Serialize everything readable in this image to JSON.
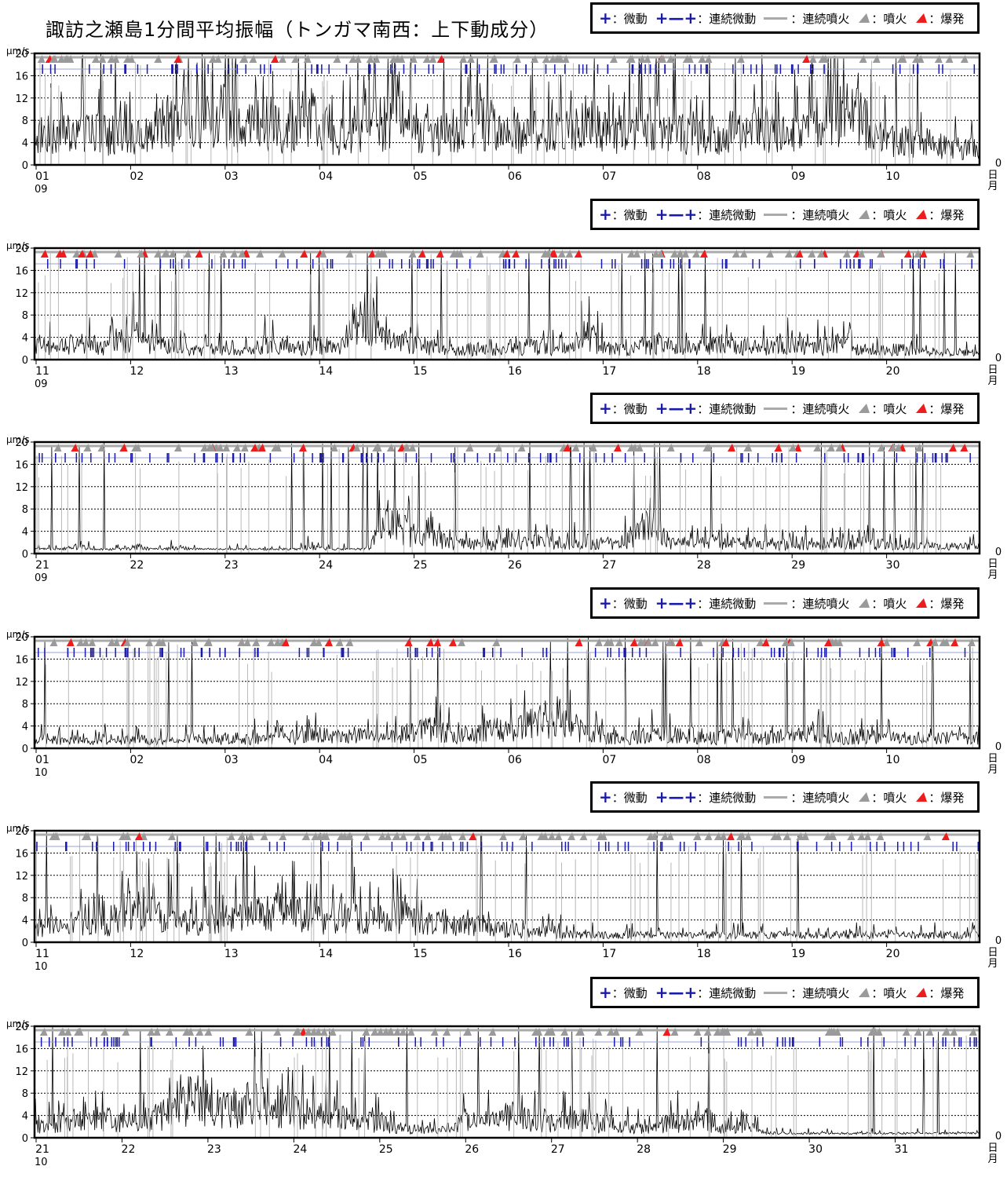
{
  "title": "諏訪之瀬島1分間平均振幅（トンガマ南西：上下動成分）",
  "legend": {
    "tremor": "：微動",
    "continuous_tremor": "：連続微動",
    "continuous_eruption": "：連続噴火",
    "eruption": "：噴火",
    "explosion": "：爆発"
  },
  "colors": {
    "tremor": "#1a1aa8",
    "eruption": "#9a9a9a",
    "explosion": "#ee1c1c",
    "continuous": "#aaaaaa",
    "trace": "#000000"
  },
  "chart_data": [
    {
      "type": "line",
      "unit": "μm/s",
      "ylim": [
        0,
        20
      ],
      "yticks": [
        0,
        4,
        8,
        12,
        16,
        20
      ],
      "x_ticks": [
        "01",
        "02",
        "03",
        "04",
        "05",
        "06",
        "07",
        "08",
        "09",
        "10"
      ],
      "month": "09",
      "axis_end_label": "0",
      "axis_end_unit": [
        "日",
        "月"
      ],
      "grid": true,
      "envelope": [
        9,
        10,
        9,
        10,
        11,
        9,
        9,
        8,
        10,
        13,
        12,
        14,
        13,
        15,
        12,
        13,
        13,
        11,
        12,
        14,
        11,
        9,
        10,
        12,
        13,
        14,
        12,
        9,
        9,
        10,
        12,
        13,
        10,
        10,
        9,
        11,
        10,
        10,
        14,
        12,
        9,
        11,
        13,
        11,
        10,
        10,
        9,
        9,
        11,
        10,
        12,
        9,
        9,
        11,
        13,
        16,
        17,
        13,
        8,
        7,
        7,
        7,
        6,
        5,
        5,
        5
      ]
    },
    {
      "type": "line",
      "unit": "μm/s",
      "ylim": [
        0,
        20
      ],
      "yticks": [
        0,
        4,
        8,
        12,
        16,
        20
      ],
      "x_ticks": [
        "11",
        "12",
        "13",
        "14",
        "15",
        "16",
        "17",
        "18",
        "19",
        "20"
      ],
      "month": "09",
      "axis_end_label": "0",
      "axis_end_unit": [
        "日",
        "月"
      ],
      "grid": true,
      "envelope": [
        5,
        4,
        4,
        5,
        4,
        4,
        6,
        7,
        5,
        4,
        3,
        3,
        3,
        3,
        2,
        3,
        5,
        4,
        3,
        4,
        4,
        3,
        10,
        14,
        6,
        5,
        5,
        4,
        3,
        3,
        3,
        3,
        3,
        3,
        4,
        4,
        3,
        3,
        8,
        4,
        3,
        3,
        4,
        5,
        3,
        3,
        4,
        4,
        5,
        4,
        4,
        4,
        5,
        4,
        4,
        4,
        4,
        3,
        3,
        3,
        3,
        3,
        2,
        2,
        2,
        2
      ]
    },
    {
      "type": "line",
      "unit": "μm/s",
      "ylim": [
        0,
        20
      ],
      "yticks": [
        0,
        4,
        8,
        12,
        16,
        20
      ],
      "x_ticks": [
        "21",
        "22",
        "23",
        "24",
        "25",
        "26",
        "27",
        "28",
        "29",
        "30"
      ],
      "month": "09",
      "axis_end_label": "0",
      "axis_end_unit": [
        "日",
        "月"
      ],
      "grid": true,
      "envelope": [
        1,
        1,
        1,
        2,
        1,
        1,
        1,
        2,
        1,
        1,
        2,
        1,
        1,
        1,
        1,
        1,
        1,
        1,
        1,
        2,
        1,
        1,
        1,
        1,
        9,
        8,
        6,
        5,
        4,
        3,
        3,
        3,
        3,
        3,
        3,
        4,
        3,
        3,
        4,
        3,
        3,
        5,
        8,
        6,
        3,
        3,
        3,
        3,
        3,
        3,
        3,
        3,
        3,
        3,
        2,
        3,
        3,
        3,
        3,
        2,
        2,
        2,
        2,
        2,
        2,
        2
      ]
    },
    {
      "type": "line",
      "unit": "μm/s",
      "ylim": [
        0,
        20
      ],
      "yticks": [
        0,
        4,
        8,
        12,
        16,
        20
      ],
      "x_ticks": [
        "01",
        "02",
        "03",
        "04",
        "05",
        "06",
        "07",
        "08",
        "09",
        "10"
      ],
      "month": "10",
      "axis_end_label": "0",
      "axis_end_unit": [
        "日",
        "月"
      ],
      "grid": true,
      "envelope": [
        2,
        3,
        2,
        2,
        2,
        3,
        2,
        3,
        2,
        2,
        2,
        3,
        2,
        3,
        2,
        3,
        3,
        3,
        3,
        4,
        4,
        3,
        4,
        4,
        4,
        4,
        5,
        6,
        5,
        4,
        4,
        5,
        6,
        5,
        9,
        10,
        8,
        6,
        5,
        4,
        3,
        3,
        4,
        4,
        4,
        4,
        3,
        3,
        4,
        3,
        3,
        3,
        4,
        4,
        4,
        3,
        3,
        4,
        3,
        3,
        3,
        3,
        3,
        3,
        3,
        3
      ]
    },
    {
      "type": "line",
      "unit": "μm/s",
      "ylim": [
        0,
        20
      ],
      "yticks": [
        0,
        4,
        8,
        12,
        16,
        20
      ],
      "x_ticks": [
        "11",
        "12",
        "13",
        "14",
        "15",
        "16",
        "17",
        "18",
        "19",
        "20"
      ],
      "month": "10",
      "axis_end_label": "0",
      "axis_end_unit": [
        "日",
        "月"
      ],
      "grid": true,
      "envelope": [
        4,
        5,
        5,
        6,
        6,
        5,
        9,
        11,
        10,
        9,
        7,
        6,
        7,
        6,
        7,
        8,
        9,
        12,
        10,
        6,
        7,
        8,
        9,
        6,
        7,
        8,
        7,
        6,
        6,
        5,
        5,
        5,
        4,
        4,
        3,
        3,
        3,
        2,
        2,
        2,
        2,
        2,
        2,
        2,
        2,
        2,
        2,
        2,
        2,
        2,
        2,
        2,
        2,
        2,
        2,
        2,
        2,
        2,
        2,
        2,
        2,
        2,
        2,
        2,
        2,
        2
      ]
    },
    {
      "type": "line",
      "unit": "μm/s",
      "ylim": [
        0,
        20
      ],
      "yticks": [
        0,
        4,
        8,
        12,
        16,
        20
      ],
      "x_ticks": [
        "21",
        "22",
        "23",
        "24",
        "25",
        "26",
        "27",
        "28",
        "29",
        "30",
        "31"
      ],
      "month": "10",
      "axis_end_label": "0",
      "axis_end_unit": [
        "日",
        "月"
      ],
      "grid": true,
      "envelope": [
        4,
        4,
        5,
        5,
        6,
        6,
        5,
        5,
        6,
        7,
        9,
        12,
        10,
        9,
        9,
        10,
        11,
        9,
        8,
        7,
        6,
        6,
        5,
        5,
        4,
        3,
        2,
        2,
        2,
        4,
        5,
        5,
        6,
        7,
        6,
        5,
        5,
        6,
        5,
        4,
        4,
        3,
        3,
        4,
        5,
        4,
        6,
        4,
        3,
        3,
        2,
        1,
        1,
        1,
        1,
        1,
        1,
        1,
        1,
        1,
        1,
        1,
        1,
        1,
        1,
        1
      ]
    }
  ]
}
